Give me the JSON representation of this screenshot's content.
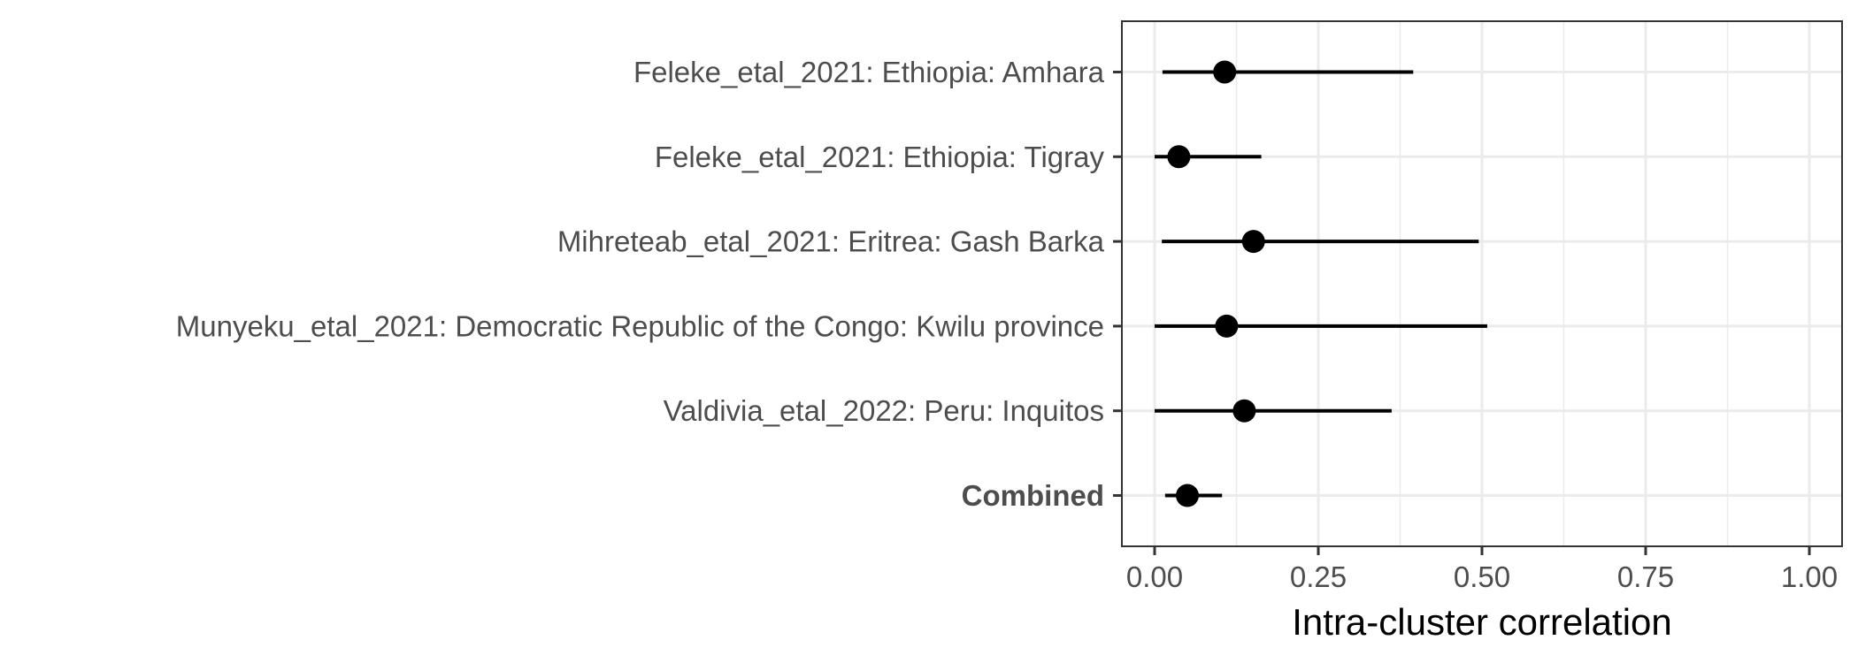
{
  "chart_data": {
    "type": "forest",
    "title": "",
    "xlabel": "Intra-cluster correlation",
    "ylabel": "",
    "xlim": [
      -0.05,
      1.05
    ],
    "xticks": [
      0.0,
      0.25,
      0.5,
      0.75,
      1.0
    ],
    "xtick_labels": [
      "0.00",
      "0.25",
      "0.50",
      "0.75",
      "1.00"
    ],
    "grid": true,
    "rows": [
      {
        "label": "Feleke_etal_2021: Ethiopia: Amhara",
        "estimate": 0.107,
        "lower": 0.012,
        "upper": 0.395,
        "bold": false
      },
      {
        "label": "Feleke_etal_2021: Ethiopia: Tigray",
        "estimate": 0.037,
        "lower": 0.0,
        "upper": 0.163,
        "bold": false
      },
      {
        "label": "Mihreteab_etal_2021: Eritrea: Gash Barka",
        "estimate": 0.151,
        "lower": 0.011,
        "upper": 0.495,
        "bold": false
      },
      {
        "label": "Munyeku_etal_2021: Democratic Republic of the Congo: Kwilu province",
        "estimate": 0.11,
        "lower": 0.0,
        "upper": 0.508,
        "bold": false
      },
      {
        "label": "Valdivia_etal_2022: Peru: Inquitos",
        "estimate": 0.137,
        "lower": 0.0,
        "upper": 0.362,
        "bold": false
      },
      {
        "label": "Combined",
        "estimate": 0.05,
        "lower": 0.016,
        "upper": 0.103,
        "bold": true
      }
    ],
    "colors": {
      "point": "#000000",
      "interval": "#000000",
      "grid": "#ebebeb",
      "panel_border": "#333333",
      "text": "#4d4d4d"
    }
  }
}
